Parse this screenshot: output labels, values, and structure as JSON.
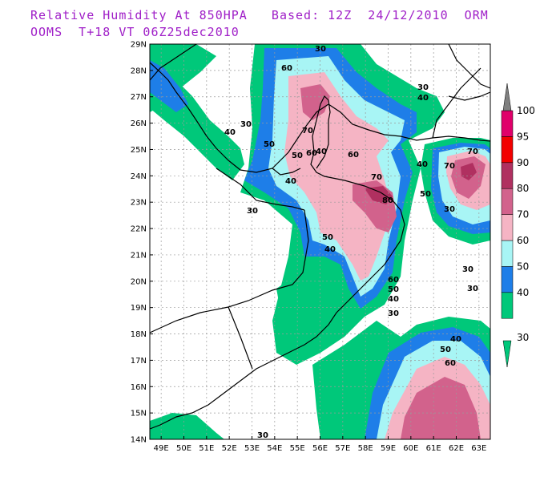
{
  "header": {
    "line1": "Relative Humidity At 850HPA   Based: 12Z  24/12/2010  ORM",
    "line2": "OOMS  T+18 VT 06Z25dec2010"
  },
  "map": {
    "lat_labels": [
      "29N",
      "28N",
      "27N",
      "26N",
      "25N",
      "24N",
      "23N",
      "22N",
      "21N",
      "20N",
      "19N",
      "18N",
      "17N",
      "16N",
      "15N",
      "14N"
    ],
    "lon_labels": [
      "49E",
      "50E",
      "51E",
      "52E",
      "53E",
      "54E",
      "55E",
      "56E",
      "57E",
      "58E",
      "59E",
      "60E",
      "61E",
      "62E",
      "63E"
    ]
  },
  "legend": {
    "levels": [
      "30",
      "40",
      "50",
      "60",
      "70",
      "80",
      "90",
      "95",
      "100"
    ],
    "colors": [
      "#00c87a",
      "#1e7ee8",
      "#a8f5f5",
      "#f5b4c4",
      "#d2628c",
      "#b03060",
      "#f20000",
      "#e0006a",
      "#808080"
    ]
  },
  "contour_labels": [
    {
      "text": "30"
    },
    {
      "text": "60"
    },
    {
      "text": "30"
    },
    {
      "text": "40"
    },
    {
      "text": "30"
    },
    {
      "text": "40"
    },
    {
      "text": "70"
    },
    {
      "text": "50"
    },
    {
      "text": "50"
    },
    {
      "text": "60"
    },
    {
      "text": "60"
    },
    {
      "text": "40"
    },
    {
      "text": "70"
    },
    {
      "text": "80"
    },
    {
      "text": "30"
    },
    {
      "text": "40"
    },
    {
      "text": "40"
    },
    {
      "text": "70"
    },
    {
      "text": "70"
    },
    {
      "text": "50"
    },
    {
      "text": "50"
    },
    {
      "text": "40"
    },
    {
      "text": "60"
    },
    {
      "text": "50"
    },
    {
      "text": "40"
    },
    {
      "text": "30"
    },
    {
      "text": "30"
    },
    {
      "text": "30"
    },
    {
      "text": "30"
    },
    {
      "text": "40"
    },
    {
      "text": "50"
    },
    {
      "text": "60"
    },
    {
      "text": "30"
    }
  ]
}
